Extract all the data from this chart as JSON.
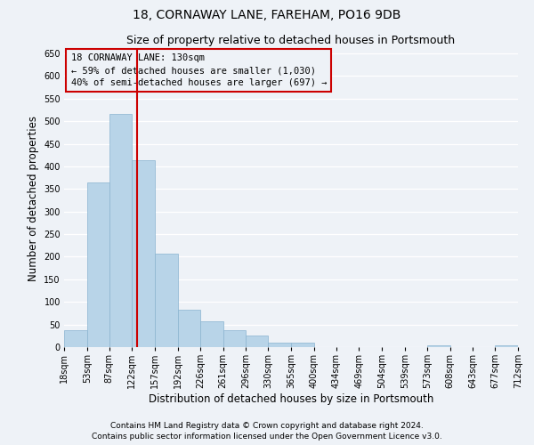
{
  "title": "18, CORNAWAY LANE, FAREHAM, PO16 9DB",
  "subtitle": "Size of property relative to detached houses in Portsmouth",
  "xlabel": "Distribution of detached houses by size in Portsmouth",
  "ylabel": "Number of detached properties",
  "bar_color": "#b8d4e8",
  "bar_edgecolor": "#8ab4d0",
  "vline_x": 130,
  "vline_color": "#cc0000",
  "annotation_line1": "18 CORNAWAY LANE: 130sqm",
  "annotation_line2": "← 59% of detached houses are smaller (1,030)",
  "annotation_line3": "40% of semi-detached houses are larger (697) →",
  "annotation_box_edgecolor": "#cc0000",
  "bins": [
    18,
    53,
    87,
    122,
    157,
    192,
    226,
    261,
    296,
    330,
    365,
    400,
    434,
    469,
    504,
    539,
    573,
    608,
    643,
    677,
    712
  ],
  "counts": [
    38,
    365,
    517,
    413,
    207,
    83,
    57,
    37,
    25,
    10,
    9,
    0,
    0,
    0,
    0,
    0,
    3,
    0,
    0,
    3
  ],
  "ylim": [
    0,
    660
  ],
  "yticks": [
    0,
    50,
    100,
    150,
    200,
    250,
    300,
    350,
    400,
    450,
    500,
    550,
    600,
    650
  ],
  "footer_line1": "Contains HM Land Registry data © Crown copyright and database right 2024.",
  "footer_line2": "Contains public sector information licensed under the Open Government Licence v3.0.",
  "background_color": "#eef2f7",
  "grid_color": "#ffffff",
  "title_fontsize": 10,
  "subtitle_fontsize": 9,
  "axis_label_fontsize": 8.5,
  "tick_fontsize": 7,
  "annotation_fontsize": 7.5,
  "footer_fontsize": 6.5
}
